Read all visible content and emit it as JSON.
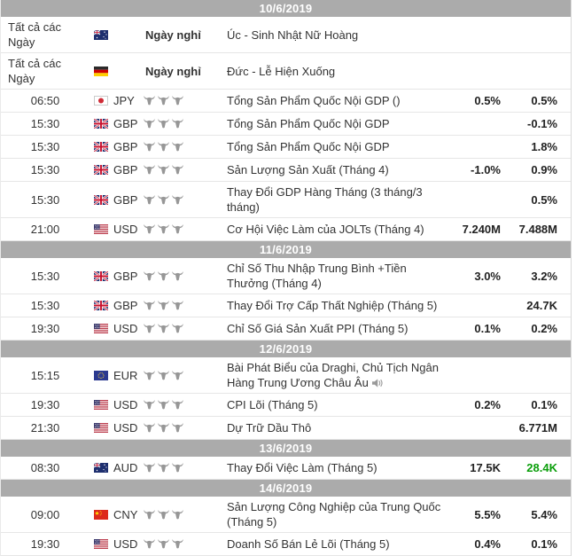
{
  "colors": {
    "date_header_bg": "#ababab",
    "date_header_text": "#ffffff",
    "row_border": "#e6e6e6",
    "text": "#333333",
    "value_text": "#222222",
    "positive_green": "#0a9e0a",
    "bull_gray": "#979797"
  },
  "holiday_label": "Ngày nghỉ",
  "all_day_label": "Tất cả các Ngày",
  "sections": [
    {
      "date": "10/6/2019",
      "rows": [
        {
          "type": "holiday",
          "time": "Tất cả các Ngày",
          "flag": "australia",
          "label": "Ngày nghỉ",
          "event": "Úc - Sinh Nhật Nữ Hoàng",
          "val1": "",
          "val2": ""
        },
        {
          "type": "holiday",
          "time": "Tất cả các Ngày",
          "flag": "germany",
          "label": "Ngày nghỉ",
          "event": "Đức - Lễ Hiện Xuống",
          "val1": "",
          "val2": ""
        },
        {
          "type": "event",
          "time": "06:50",
          "flag": "japan",
          "currency": "JPY",
          "importance": 3,
          "event": "Tổng Sản Phẩm Quốc Nội GDP ()",
          "val1": "0.5%",
          "val2": "0.5%"
        },
        {
          "type": "event",
          "time": "15:30",
          "flag": "uk",
          "currency": "GBP",
          "importance": 3,
          "event": "Tổng Sản Phẩm Quốc Nội GDP",
          "val1": "",
          "val2": "-0.1%"
        },
        {
          "type": "event",
          "time": "15:30",
          "flag": "uk",
          "currency": "GBP",
          "importance": 3,
          "event": "Tổng Sản Phẩm Quốc Nội GDP",
          "val1": "",
          "val2": "1.8%"
        },
        {
          "type": "event",
          "time": "15:30",
          "flag": "uk",
          "currency": "GBP",
          "importance": 3,
          "event": "Sản Lượng Sản Xuất (Tháng 4)",
          "val1": "-1.0%",
          "val2": "0.9%"
        },
        {
          "type": "event",
          "time": "15:30",
          "flag": "uk",
          "currency": "GBP",
          "importance": 3,
          "event": "Thay Đổi GDP Hàng Tháng (3 tháng/3 tháng)",
          "val1": "",
          "val2": "0.5%"
        },
        {
          "type": "event",
          "time": "21:00",
          "flag": "us",
          "currency": "USD",
          "importance": 3,
          "event": "Cơ Hội Việc Làm của JOLTs (Tháng 4)",
          "val1": "7.240M",
          "val2": "7.488M"
        }
      ]
    },
    {
      "date": "11/6/2019",
      "rows": [
        {
          "type": "event",
          "time": "15:30",
          "flag": "uk",
          "currency": "GBP",
          "importance": 3,
          "event": "Chỉ Số Thu Nhập Trung Bình +Tiền Thưởng (Tháng 4)",
          "val1": "3.0%",
          "val2": "3.2%"
        },
        {
          "type": "event",
          "time": "15:30",
          "flag": "uk",
          "currency": "GBP",
          "importance": 3,
          "event": "Thay Đổi Trợ Cấp Thất Nghiệp (Tháng 5)",
          "val1": "",
          "val2": "24.7K"
        },
        {
          "type": "event",
          "time": "19:30",
          "flag": "us",
          "currency": "USD",
          "importance": 3,
          "event": "Chỉ Số Giá Sản Xuất PPI (Tháng 5)",
          "val1": "0.1%",
          "val2": "0.2%"
        }
      ]
    },
    {
      "date": "12/6/2019",
      "rows": [
        {
          "type": "event",
          "time": "15:15",
          "flag": "eu",
          "currency": "EUR",
          "importance": 3,
          "event": "Bài Phát Biểu của Draghi, Chủ Tịch Ngân Hàng Trung Ương Châu Âu",
          "speech": true,
          "val1": "",
          "val2": ""
        },
        {
          "type": "event",
          "time": "19:30",
          "flag": "us",
          "currency": "USD",
          "importance": 3,
          "event": "CPI Lõi (Tháng 5)",
          "val1": "0.2%",
          "val2": "0.1%"
        },
        {
          "type": "event",
          "time": "21:30",
          "flag": "us",
          "currency": "USD",
          "importance": 3,
          "event": "Dự Trữ Dầu Thô",
          "val1": "",
          "val2": "6.771M"
        }
      ]
    },
    {
      "date": "13/6/2019",
      "rows": [
        {
          "type": "event",
          "time": "08:30",
          "flag": "australia",
          "currency": "AUD",
          "importance": 3,
          "event": "Thay Đổi Việc Làm (Tháng 5)",
          "val1": "17.5K",
          "val2": "28.4K",
          "val2_color": "green"
        }
      ]
    },
    {
      "date": "14/6/2019",
      "rows": [
        {
          "type": "event",
          "time": "09:00",
          "flag": "china",
          "currency": "CNY",
          "importance": 3,
          "event": "Sản Lượng Công Nghiệp của Trung Quốc (Tháng 5)",
          "val1": "5.5%",
          "val2": "5.4%"
        },
        {
          "type": "event",
          "time": "19:30",
          "flag": "us",
          "currency": "USD",
          "importance": 3,
          "event": "Doanh Số Bán Lẻ Lõi (Tháng 5)",
          "val1": "0.4%",
          "val2": "0.1%"
        }
      ]
    }
  ]
}
